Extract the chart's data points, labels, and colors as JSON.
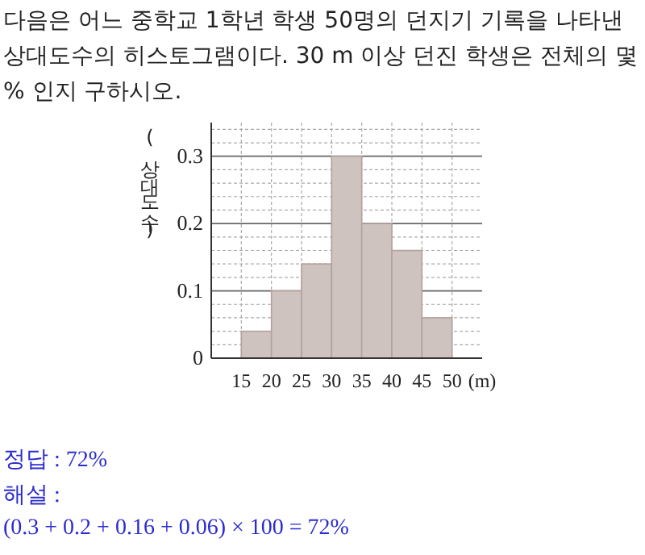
{
  "chart_data": {
    "type": "histogram",
    "title": "다음은 어느 중학교 1학년 학생 50명의 던지기 기록을 나타낸 상대도수의 히스토그램이다. 30 m  이상 던진 학생은 전체의 몇 % 인지 구하시오.",
    "xlabel": "(m)",
    "ylabel": "(상대도수)",
    "bins": [
      15,
      20,
      25,
      30,
      35,
      40,
      45,
      50
    ],
    "values": [
      0.04,
      0.1,
      0.14,
      0.3,
      0.2,
      0.16,
      0.06
    ],
    "color": "#cfc3bf",
    "xlim": [
      10,
      55
    ],
    "ylim": [
      0,
      0.35
    ],
    "xticks": [
      15,
      20,
      25,
      30,
      35,
      40,
      45,
      50
    ],
    "yticks": [
      0,
      {
        "value": 0.02,
        "label": null
      },
      {
        "value": 0.04,
        "label": null
      },
      {
        "value": 0.06,
        "label": null
      },
      {
        "value": 0.08,
        "label": null
      },
      {
        "value": 0.1,
        "label": "0.1"
      },
      {
        "value": 0.12,
        "label": null
      },
      {
        "value": 0.14,
        "label": null
      },
      {
        "value": 0.16,
        "label": null
      },
      {
        "value": 0.18,
        "label": null
      },
      {
        "value": 0.2,
        "label": "0.2"
      },
      {
        "value": 0.22,
        "label": null
      },
      {
        "value": 0.24,
        "label": null
      },
      {
        "value": 0.26,
        "label": null
      },
      {
        "value": 0.28,
        "label": null
      },
      {
        "value": 0.3,
        "label": "0.3"
      },
      {
        "value": 0.32,
        "label": null
      },
      {
        "value": 0.34,
        "label": null
      }
    ],
    "grid": true,
    "annotations": [
      "정답 : 72%",
      "해설 :",
      "(0.3 + 0.2 + 0.16 + 0.06) × 100 = 72%"
    ]
  }
}
